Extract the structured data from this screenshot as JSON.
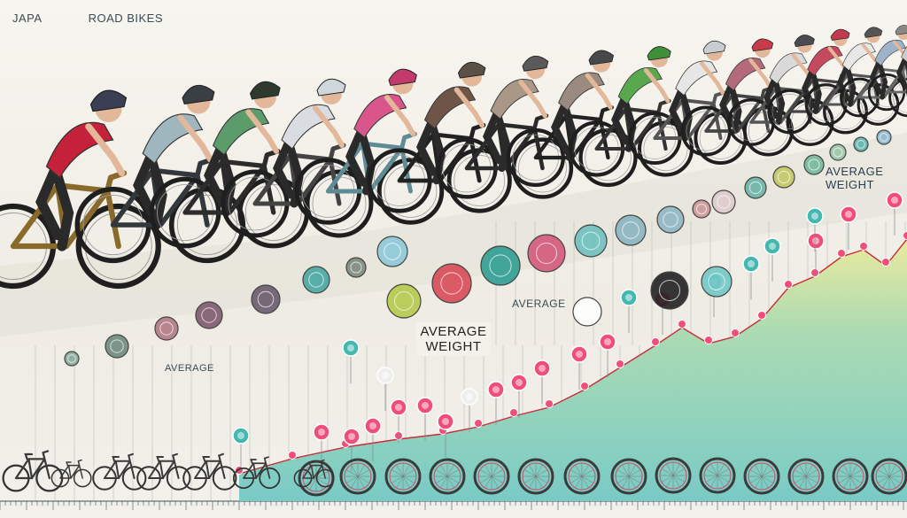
{
  "title_left": "JAPA",
  "title_right": "ROAD BIKES",
  "label_average_weight_right": "AVERAGE WEIGHT",
  "label_average_mid": "AVERAGE",
  "label_average_weight_mid": "AVERAGE WEIGHT",
  "label_average_left": "AVERAGE",
  "colors": {
    "area_green": "#b9dd9a",
    "area_teal": "#7ecfc4",
    "area_yellow": "#ecea98",
    "marker_pink": "#f04e7a",
    "marker_teal": "#44b7b0",
    "line_red": "#c62d3a"
  }
}
